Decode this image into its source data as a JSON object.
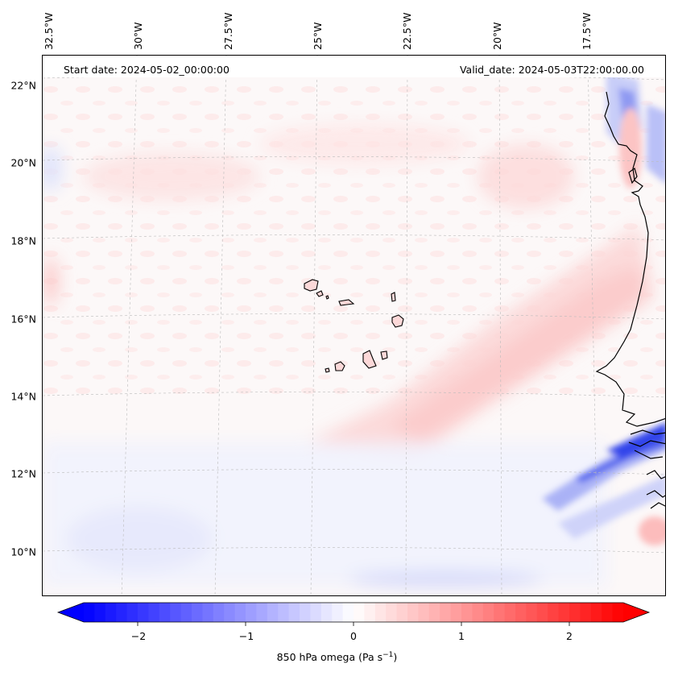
{
  "map": {
    "start_date": "Start date: 2024-05-02_00:00:00",
    "valid_date": "Valid_date: 2024-05-03T22:00:00.00",
    "latitude_labels": [
      "22°N",
      "20°N",
      "18°N",
      "16°N",
      "14°N",
      "12°N",
      "10°N"
    ],
    "longitude_labels": [
      "32.5°W",
      "30°W",
      "27.5°W",
      "25°W",
      "22.5°W",
      "20°W",
      "17.5°W"
    ],
    "variable": "850 hPa omega",
    "units": "Pa s",
    "units_exponent": "−1",
    "colorbar_ticks": [
      "−2",
      "−1",
      "0",
      "1",
      "2"
    ],
    "colorbar_range": [
      -2.5,
      2.5
    ],
    "colormap": {
      "negative": "#0000ff",
      "zero": "#ffffff",
      "positive": "#ff0000"
    },
    "features": [
      "Cape Verde Islands",
      "West African coastline"
    ]
  }
}
